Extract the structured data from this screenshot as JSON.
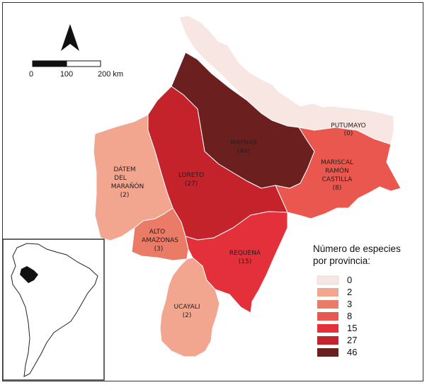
{
  "provinces": [
    {
      "name": "PUTUMAYO",
      "species": "(0)",
      "color": "#f7e6e1"
    },
    {
      "name": "MAYNAS",
      "species": "(46)",
      "color": "#6b1f1f"
    },
    {
      "name": "MARISCAL RAMÓN CASTILLA",
      "species": "(8)",
      "color": "#e9574f"
    },
    {
      "name": "DÁTEM DEL MARAÑÓN",
      "species": "(2)",
      "color": "#f2a58f"
    },
    {
      "name": "LORETO",
      "species": "(27)",
      "color": "#c4232b"
    },
    {
      "name": "ALTO AMAZONAS",
      "species": "(3)",
      "color": "#ea7b66"
    },
    {
      "name": "REQUENA",
      "species": "(15)",
      "color": "#e3303a"
    },
    {
      "name": "UCAYALI",
      "species": "(2)",
      "color": "#f2a58f"
    }
  ],
  "labels": {
    "putumayo": {
      "l1": "PUTUMAYO",
      "count": "(0)"
    },
    "maynas": {
      "l1": "MAYNAS",
      "count": "(46)"
    },
    "mariscal": {
      "l1": "MARISCAL",
      "l2": "RAMÓN",
      "l3": "CASTILLA",
      "count": "(8)"
    },
    "datem": {
      "l1": "DÁTEM",
      "l2": "DEL",
      "l3": "MARAÑÓN",
      "count": "(2)"
    },
    "loreto": {
      "l1": "LORETO",
      "count": "(27)"
    },
    "alto": {
      "l1": "ALTO",
      "l2": "AMAZONAS",
      "count": "(3)"
    },
    "requena": {
      "l1": "REQUENA",
      "count": "(15)"
    },
    "ucayali": {
      "l1": "UCAYALI",
      "count": "(2)"
    }
  },
  "legend": {
    "title_line1": "Número de especies",
    "title_line2": "por provincia:",
    "items": [
      {
        "label": "0",
        "color": "#f7e6e1"
      },
      {
        "label": "2",
        "color": "#f2a58f"
      },
      {
        "label": "3",
        "color": "#ea7b66"
      },
      {
        "label": "8",
        "color": "#e9574f"
      },
      {
        "label": "15",
        "color": "#e3303a"
      },
      {
        "label": "27",
        "color": "#c4232b"
      },
      {
        "label": "46",
        "color": "#6b1f1f"
      }
    ]
  },
  "scale_bar": {
    "tick0": "0",
    "tick1": "100",
    "tick2": "200 km"
  },
  "north_arrow": {
    "icon": "north-arrow-icon"
  },
  "inset": {
    "icon": "south-america-locator-map"
  }
}
